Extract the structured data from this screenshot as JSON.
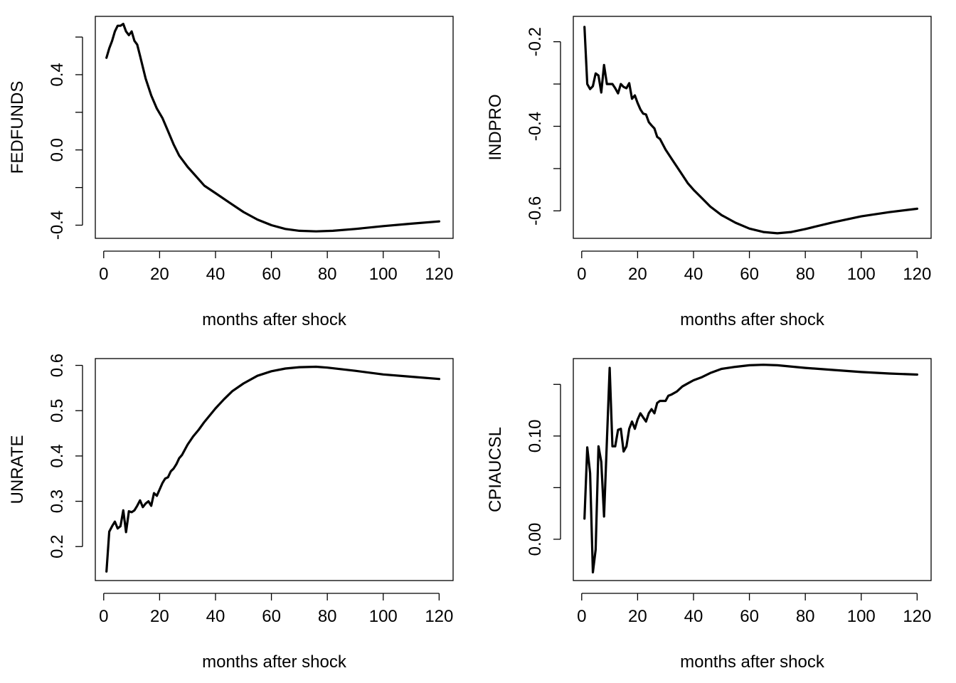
{
  "chart_data": [
    {
      "type": "line",
      "title": "",
      "xlabel": "months after shock",
      "ylabel": "FEDFUNDS",
      "xlim": [
        -3,
        125
      ],
      "ylim": [
        -0.47,
        0.71
      ],
      "xticks": [
        0,
        20,
        40,
        60,
        80,
        100,
        120
      ],
      "xtick_labels": [
        "0",
        "20",
        "40",
        "60",
        "80",
        "100",
        "120"
      ],
      "yticks": [
        -0.4,
        -0.2,
        0.0,
        0.2,
        0.4,
        0.6
      ],
      "ytick_labels": [
        "-0.4",
        "",
        "0.0",
        "",
        "0.4",
        ""
      ],
      "grid": false,
      "points": [
        [
          1,
          0.49
        ],
        [
          2,
          0.54
        ],
        [
          3,
          0.58
        ],
        [
          4,
          0.63
        ],
        [
          5,
          0.66
        ],
        [
          6,
          0.66
        ],
        [
          7,
          0.67
        ],
        [
          8,
          0.63
        ],
        [
          9,
          0.61
        ],
        [
          10,
          0.63
        ],
        [
          11,
          0.58
        ],
        [
          12,
          0.56
        ],
        [
          13,
          0.5
        ],
        [
          15,
          0.38
        ],
        [
          17,
          0.29
        ],
        [
          19,
          0.22
        ],
        [
          21,
          0.17
        ],
        [
          23,
          0.1
        ],
        [
          25,
          0.03
        ],
        [
          27,
          -0.03
        ],
        [
          30,
          -0.09
        ],
        [
          33,
          -0.14
        ],
        [
          36,
          -0.19
        ],
        [
          40,
          -0.23
        ],
        [
          45,
          -0.28
        ],
        [
          50,
          -0.33
        ],
        [
          55,
          -0.37
        ],
        [
          60,
          -0.4
        ],
        [
          65,
          -0.42
        ],
        [
          70,
          -0.43
        ],
        [
          76,
          -0.433
        ],
        [
          82,
          -0.43
        ],
        [
          90,
          -0.42
        ],
        [
          100,
          -0.405
        ],
        [
          110,
          -0.392
        ],
        [
          120,
          -0.38
        ]
      ]
    },
    {
      "type": "line",
      "title": "",
      "xlabel": "months after shock",
      "ylabel": "INDPRO",
      "xlim": [
        -3,
        125
      ],
      "ylim": [
        -0.665,
        -0.14
      ],
      "xticks": [
        0,
        20,
        40,
        60,
        80,
        100,
        120
      ],
      "xtick_labels": [
        "0",
        "20",
        "40",
        "60",
        "80",
        "100",
        "120"
      ],
      "yticks": [
        -0.6,
        -0.5,
        -0.4,
        -0.3,
        -0.2
      ],
      "ytick_labels": [
        "-0.6",
        "",
        "-0.4",
        "",
        "-0.2"
      ],
      "grid": false,
      "points": [
        [
          1,
          -0.165
        ],
        [
          2,
          -0.3
        ],
        [
          3,
          -0.312
        ],
        [
          4,
          -0.305
        ],
        [
          5,
          -0.275
        ],
        [
          6,
          -0.28
        ],
        [
          7,
          -0.32
        ],
        [
          8,
          -0.255
        ],
        [
          9,
          -0.3
        ],
        [
          10,
          -0.3
        ],
        [
          11,
          -0.3
        ],
        [
          12,
          -0.31
        ],
        [
          13,
          -0.322
        ],
        [
          14,
          -0.3
        ],
        [
          15,
          -0.307
        ],
        [
          16,
          -0.31
        ],
        [
          17,
          -0.298
        ],
        [
          18,
          -0.335
        ],
        [
          19,
          -0.327
        ],
        [
          20,
          -0.345
        ],
        [
          21,
          -0.36
        ],
        [
          22,
          -0.37
        ],
        [
          23,
          -0.372
        ],
        [
          24,
          -0.39
        ],
        [
          25,
          -0.398
        ],
        [
          26,
          -0.405
        ],
        [
          27,
          -0.425
        ],
        [
          28,
          -0.43
        ],
        [
          30,
          -0.455
        ],
        [
          32,
          -0.475
        ],
        [
          34,
          -0.495
        ],
        [
          36,
          -0.515
        ],
        [
          38,
          -0.535
        ],
        [
          40,
          -0.55
        ],
        [
          43,
          -0.57
        ],
        [
          46,
          -0.59
        ],
        [
          50,
          -0.61
        ],
        [
          55,
          -0.628
        ],
        [
          60,
          -0.642
        ],
        [
          65,
          -0.65
        ],
        [
          70,
          -0.653
        ],
        [
          75,
          -0.65
        ],
        [
          80,
          -0.643
        ],
        [
          90,
          -0.627
        ],
        [
          100,
          -0.613
        ],
        [
          110,
          -0.603
        ],
        [
          120,
          -0.595
        ]
      ]
    },
    {
      "type": "line",
      "title": "",
      "xlabel": "months after shock",
      "ylabel": "UNRATE",
      "xlim": [
        -3,
        125
      ],
      "ylim": [
        0.125,
        0.615
      ],
      "xticks": [
        0,
        20,
        40,
        60,
        80,
        100,
        120
      ],
      "xtick_labels": [
        "0",
        "20",
        "40",
        "60",
        "80",
        "100",
        "120"
      ],
      "yticks": [
        0.2,
        0.3,
        0.4,
        0.5,
        0.6
      ],
      "ytick_labels": [
        "0.2",
        "0.3",
        "0.4",
        "0.5",
        "0.6"
      ],
      "grid": false,
      "points": [
        [
          1,
          0.145
        ],
        [
          2,
          0.233
        ],
        [
          3,
          0.245
        ],
        [
          4,
          0.255
        ],
        [
          5,
          0.24
        ],
        [
          6,
          0.245
        ],
        [
          7,
          0.28
        ],
        [
          8,
          0.232
        ],
        [
          9,
          0.278
        ],
        [
          10,
          0.276
        ],
        [
          11,
          0.28
        ],
        [
          12,
          0.29
        ],
        [
          13,
          0.302
        ],
        [
          14,
          0.287
        ],
        [
          15,
          0.295
        ],
        [
          16,
          0.3
        ],
        [
          17,
          0.29
        ],
        [
          18,
          0.318
        ],
        [
          19,
          0.312
        ],
        [
          20,
          0.326
        ],
        [
          21,
          0.34
        ],
        [
          22,
          0.35
        ],
        [
          23,
          0.353
        ],
        [
          24,
          0.366
        ],
        [
          25,
          0.372
        ],
        [
          26,
          0.382
        ],
        [
          27,
          0.395
        ],
        [
          28,
          0.402
        ],
        [
          30,
          0.425
        ],
        [
          32,
          0.443
        ],
        [
          34,
          0.458
        ],
        [
          36,
          0.475
        ],
        [
          38,
          0.49
        ],
        [
          40,
          0.505
        ],
        [
          43,
          0.525
        ],
        [
          46,
          0.543
        ],
        [
          50,
          0.56
        ],
        [
          55,
          0.577
        ],
        [
          60,
          0.587
        ],
        [
          65,
          0.593
        ],
        [
          70,
          0.596
        ],
        [
          76,
          0.597
        ],
        [
          80,
          0.595
        ],
        [
          90,
          0.588
        ],
        [
          100,
          0.58
        ],
        [
          110,
          0.575
        ],
        [
          120,
          0.57
        ]
      ]
    },
    {
      "type": "line",
      "title": "",
      "xlabel": "months after shock",
      "ylabel": "CPIAUCSL",
      "xlim": [
        -3,
        125
      ],
      "ylim": [
        -0.04,
        0.175
      ],
      "xticks": [
        0,
        20,
        40,
        60,
        80,
        100,
        120
      ],
      "xtick_labels": [
        "0",
        "20",
        "40",
        "60",
        "80",
        "100",
        "120"
      ],
      "yticks": [
        0.0,
        0.05,
        0.1,
        0.15
      ],
      "ytick_labels": [
        "0.00",
        "",
        "0.10",
        ""
      ],
      "grid": false,
      "points": [
        [
          1,
          0.02
        ],
        [
          2,
          0.089
        ],
        [
          3,
          0.064
        ],
        [
          4,
          -0.032
        ],
        [
          5,
          -0.01
        ],
        [
          6,
          0.09
        ],
        [
          7,
          0.075
        ],
        [
          8,
          0.022
        ],
        [
          9,
          0.095
        ],
        [
          10,
          0.166
        ],
        [
          11,
          0.09
        ],
        [
          12,
          0.09
        ],
        [
          13,
          0.106
        ],
        [
          14,
          0.107
        ],
        [
          15,
          0.085
        ],
        [
          16,
          0.09
        ],
        [
          17,
          0.107
        ],
        [
          18,
          0.114
        ],
        [
          19,
          0.107
        ],
        [
          20,
          0.116
        ],
        [
          21,
          0.122
        ],
        [
          22,
          0.118
        ],
        [
          23,
          0.114
        ],
        [
          24,
          0.122
        ],
        [
          25,
          0.126
        ],
        [
          26,
          0.122
        ],
        [
          27,
          0.132
        ],
        [
          28,
          0.134
        ],
        [
          29,
          0.134
        ],
        [
          30,
          0.134
        ],
        [
          31,
          0.139
        ],
        [
          32,
          0.14
        ],
        [
          34,
          0.143
        ],
        [
          36,
          0.148
        ],
        [
          38,
          0.151
        ],
        [
          40,
          0.154
        ],
        [
          43,
          0.157
        ],
        [
          46,
          0.161
        ],
        [
          50,
          0.165
        ],
        [
          55,
          0.167
        ],
        [
          60,
          0.1685
        ],
        [
          65,
          0.169
        ],
        [
          70,
          0.1685
        ],
        [
          80,
          0.166
        ],
        [
          90,
          0.164
        ],
        [
          100,
          0.162
        ],
        [
          110,
          0.1605
        ],
        [
          120,
          0.1595
        ]
      ]
    }
  ]
}
